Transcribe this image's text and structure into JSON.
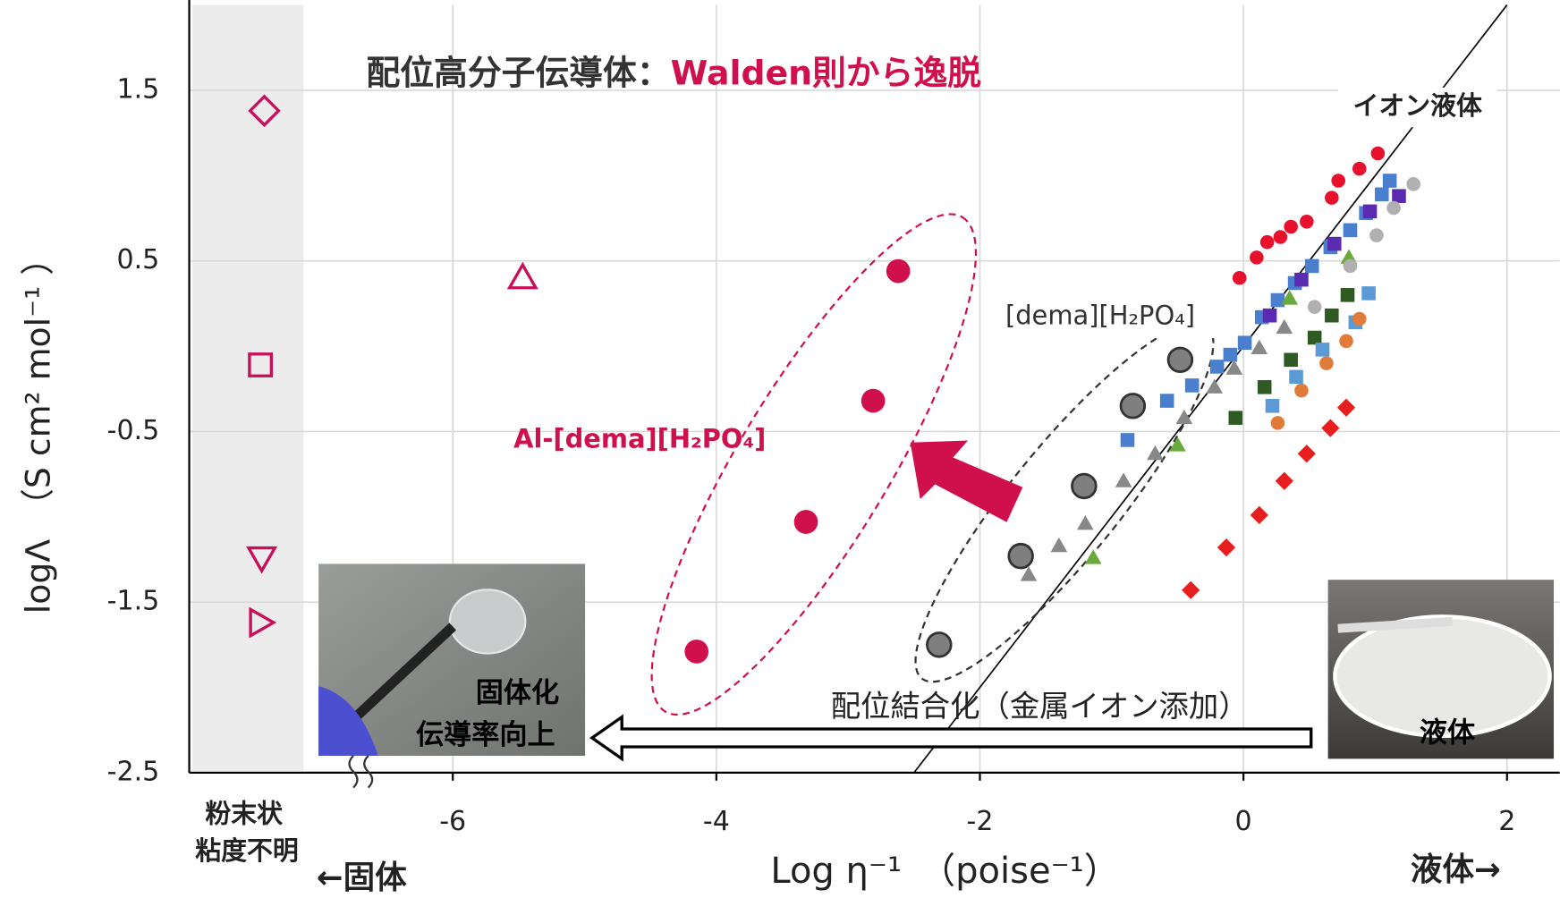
{
  "chart_data": {
    "type": "scatter",
    "title_parts": [
      "配位高分子伝導体：",
      "Walden則から逸脱"
    ],
    "title_colors": [
      "#333333",
      "#d0104c"
    ],
    "x_label": "Log η⁻¹　（poise⁻¹）",
    "y_label": "logΛ　（S cm² mol⁻¹ ）",
    "xlim": [
      -8,
      2.4
    ],
    "ylim": [
      -2.5,
      2.0
    ],
    "xticks": [
      -6,
      -4,
      -2,
      0,
      2
    ],
    "yticks": [
      1.5,
      0.5,
      -0.5,
      -1.5,
      -2.5
    ],
    "grid": true,
    "reference_line": {
      "label": "イオン液体",
      "x": [
        -2.5,
        2.0
      ],
      "y": [
        -2.5,
        2.0
      ]
    },
    "series": [
      {
        "marker": "diamond",
        "color": "#c8105a",
        "hollow": true,
        "x": [
          -7.43
        ],
        "y": [
          1.38
        ]
      },
      {
        "marker": "triangle-up",
        "color": "#c8105a",
        "hollow": true,
        "x": [
          -5.47
        ],
        "y": [
          0.4
        ]
      },
      {
        "marker": "square",
        "color": "#c8105a",
        "hollow": true,
        "x": [
          -7.46
        ],
        "y": [
          -0.11
        ]
      },
      {
        "marker": "triangle-down",
        "color": "#c8105a",
        "hollow": true,
        "x": [
          -7.45
        ],
        "y": [
          -1.24
        ]
      },
      {
        "marker": "triangle-right",
        "color": "#c8105a",
        "hollow": true,
        "x": [
          -7.46
        ],
        "y": [
          -1.62
        ]
      },
      {
        "marker": "square",
        "color": "#4a7fd0",
        "x": [
          -0.88,
          -0.58,
          -0.39,
          -0.2,
          -0.1,
          0.01,
          0.14,
          0.26,
          0.39,
          0.52,
          0.66,
          0.81,
          0.93,
          1.05,
          1.11
        ],
        "y": [
          -0.55,
          -0.32,
          -0.23,
          -0.12,
          -0.05,
          0.02,
          0.17,
          0.27,
          0.37,
          0.47,
          0.58,
          0.68,
          0.78,
          0.89,
          0.97
        ]
      },
      {
        "marker": "triangle-up",
        "color": "#888888",
        "x": [
          -1.63,
          -1.4,
          -1.2,
          -0.91,
          -0.67,
          -0.45,
          -0.22,
          -0.07,
          0.12,
          0.31
        ],
        "y": [
          -1.34,
          -1.17,
          -1.04,
          -0.79,
          -0.63,
          -0.42,
          -0.24,
          -0.13,
          -0.01,
          0.11
        ]
      },
      {
        "marker": "triangle-up",
        "color": "#6aaa3a",
        "x": [
          -1.14,
          -0.5,
          0.35,
          0.8
        ],
        "y": [
          -1.24,
          -0.58,
          0.28,
          0.52
        ]
      },
      {
        "marker": "square",
        "color": "#2f5a24",
        "x": [
          -0.06,
          0.16,
          0.36,
          0.54,
          0.67,
          0.79
        ],
        "y": [
          -0.42,
          -0.24,
          -0.08,
          0.05,
          0.18,
          0.3
        ]
      },
      {
        "marker": "square",
        "color": "#5b9bd5",
        "x": [
          0.22,
          0.4,
          0.6,
          0.85,
          0.95
        ],
        "y": [
          -0.35,
          -0.18,
          -0.02,
          0.14,
          0.31
        ]
      },
      {
        "marker": "circle",
        "color": "#e07b39",
        "x": [
          0.26,
          0.44,
          0.63,
          0.78,
          0.88
        ],
        "y": [
          -0.45,
          -0.26,
          -0.1,
          0.03,
          0.16
        ]
      },
      {
        "marker": "diamond",
        "color": "#e81e1e",
        "x": [
          -0.4,
          -0.13,
          0.12,
          0.31,
          0.48,
          0.66,
          0.78
        ],
        "y": [
          -1.43,
          -1.18,
          -0.99,
          -0.79,
          -0.63,
          -0.48,
          -0.36
        ]
      },
      {
        "marker": "square",
        "color": "#5a2ab0",
        "x": [
          0.2,
          0.44,
          0.69,
          0.96,
          1.18
        ],
        "y": [
          0.18,
          0.39,
          0.6,
          0.79,
          0.88
        ]
      },
      {
        "marker": "circle",
        "color": "#b0b0b0",
        "x": [
          0.54,
          0.81,
          1.01,
          1.14,
          1.29
        ],
        "y": [
          0.23,
          0.47,
          0.65,
          0.81,
          0.95
        ]
      },
      {
        "marker": "circle",
        "color": "#e8112d",
        "x": [
          -0.03,
          0.1,
          0.18,
          0.28,
          0.36,
          0.48,
          0.67,
          0.72,
          0.88,
          1.02
        ],
        "y": [
          0.4,
          0.52,
          0.61,
          0.64,
          0.7,
          0.73,
          0.87,
          0.97,
          1.04,
          1.13
        ]
      },
      {
        "name": "[dema][H₂PO₄]",
        "marker": "circle",
        "color": "#7f7f7f",
        "edgecolor": "#333333",
        "size": 12,
        "x": [
          -0.48,
          -0.84,
          -1.21,
          -1.69,
          -2.31
        ],
        "y": [
          -0.08,
          -0.35,
          -0.82,
          -1.23,
          -1.75
        ]
      },
      {
        "name": "Al-[dema][H₂PO₄]",
        "marker": "circle",
        "color": "#d0104c",
        "size": 12,
        "x": [
          -2.62,
          -2.81,
          -3.32,
          -4.15
        ],
        "y": [
          0.44,
          -0.32,
          -1.03,
          -1.79
        ]
      }
    ],
    "annotations": {
      "process": "配位結合化（金属イオン添加）",
      "solid_photo": [
        "固体化",
        "伝導率向上"
      ],
      "liquid_photo": "液体",
      "powder": [
        "粉末状",
        "粘度不明"
      ],
      "solid_side": "←固体",
      "liquid_side": "液体→"
    }
  }
}
